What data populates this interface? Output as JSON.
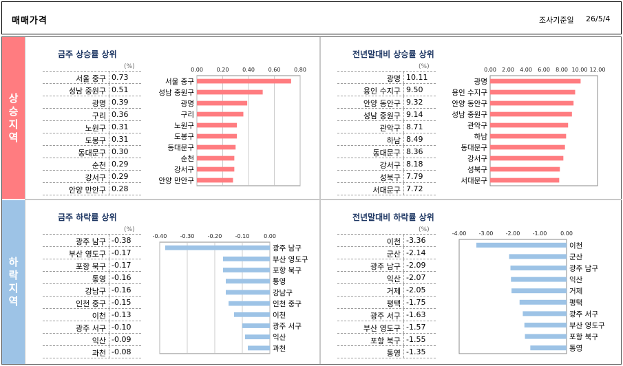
{
  "header": {
    "title": "매매가격",
    "date_label": "조사기준일",
    "date_value": "26/5/4"
  },
  "sections": {
    "rise_label": "상승지역",
    "fall_label": "하락지역"
  },
  "unit": "(%)",
  "colors": {
    "rise_bar": "#ff7c80",
    "fall_bar": "#9dc3e6",
    "rise_side": "#ff7c80",
    "fall_side": "#9dc3e6",
    "title": "#1f3864"
  },
  "panels": [
    {
      "id": "week-rise",
      "title": "금주 상승률 상위",
      "rows": [
        [
          "서울 중구",
          "0.73"
        ],
        [
          "성남 중원구",
          "0.51"
        ],
        [
          "광명",
          "0.39"
        ],
        [
          "구리",
          "0.36"
        ],
        [
          "노원구",
          "0.31"
        ],
        [
          "도봉구",
          "0.31"
        ],
        [
          "동대문구",
          "0.30"
        ],
        [
          "순천",
          "0.29"
        ],
        [
          "강서구",
          "0.29"
        ],
        [
          "안양 만안구",
          "0.28"
        ]
      ]
    },
    {
      "id": "year-rise",
      "title": "전년말대비 상승률 상위",
      "rows": [
        [
          "광명",
          "10.11"
        ],
        [
          "용인 수지구",
          "9.50"
        ],
        [
          "안양 동안구",
          "9.32"
        ],
        [
          "성남 중원구",
          "9.14"
        ],
        [
          "관악구",
          "8.71"
        ],
        [
          "하남",
          "8.49"
        ],
        [
          "동대문구",
          "8.36"
        ],
        [
          "강서구",
          "8.18"
        ],
        [
          "성북구",
          "7.79"
        ],
        [
          "서대문구",
          "7.72"
        ]
      ]
    },
    {
      "id": "week-fall",
      "title": "금주 하락률 상위",
      "rows": [
        [
          "광주 남구",
          "-0.38"
        ],
        [
          "부산 영도구",
          "-0.17"
        ],
        [
          "포항 북구",
          "-0.17"
        ],
        [
          "통영",
          "-0.16"
        ],
        [
          "강남구",
          "-0.16"
        ],
        [
          "인천 중구",
          "-0.15"
        ],
        [
          "이천",
          "-0.13"
        ],
        [
          "광주 서구",
          "-0.10"
        ],
        [
          "익산",
          "-0.09"
        ],
        [
          "과천",
          "-0.08"
        ]
      ]
    },
    {
      "id": "year-fall",
      "title": "전년말대비 하락률 상위",
      "rows": [
        [
          "이천",
          "-3.36"
        ],
        [
          "군산",
          "-2.14"
        ],
        [
          "광주 남구",
          "-2.09"
        ],
        [
          "익산",
          "-2.07"
        ],
        [
          "거제",
          "-2.05"
        ],
        [
          "평택",
          "-1.75"
        ],
        [
          "광주 서구",
          "-1.63"
        ],
        [
          "부산 영도구",
          "-1.57"
        ],
        [
          "포항 북구",
          "-1.55"
        ],
        [
          "통영",
          "-1.35"
        ]
      ]
    }
  ],
  "chart_data": [
    {
      "type": "bar",
      "orientation": "horizontal",
      "title": "금주 상승률 상위",
      "categories": [
        "서울 중구",
        "성남 중원구",
        "광명",
        "구리",
        "노원구",
        "도봉구",
        "동대문구",
        "순천",
        "강서구",
        "안양 만안구"
      ],
      "values": [
        0.73,
        0.51,
        0.39,
        0.36,
        0.31,
        0.31,
        0.3,
        0.29,
        0.29,
        0.28
      ],
      "xlim": [
        0,
        0.8
      ],
      "ticks": [
        "0.00",
        "0.20",
        "0.40",
        "0.60",
        "0.80"
      ],
      "tick_values": [
        0,
        0.2,
        0.4,
        0.6,
        0.8
      ],
      "grid": true
    },
    {
      "type": "bar",
      "orientation": "horizontal",
      "title": "전년말대비 상승률 상위",
      "categories": [
        "광명",
        "용인 수지구",
        "안양 동안구",
        "성남 중원구",
        "관악구",
        "하남",
        "동대문구",
        "강서구",
        "성북구",
        "서대문구"
      ],
      "values": [
        10.11,
        9.5,
        9.32,
        9.14,
        8.71,
        8.49,
        8.36,
        8.18,
        7.79,
        7.72
      ],
      "xlim": [
        0,
        12
      ],
      "ticks": [
        "0.00",
        "2.00",
        "4.00",
        "6.00",
        "8.00",
        "10.00",
        "12.00"
      ],
      "tick_values": [
        0,
        2,
        4,
        6,
        8,
        10,
        12
      ],
      "grid": false
    },
    {
      "type": "bar",
      "orientation": "horizontal",
      "title": "금주 하락률 상위",
      "categories": [
        "광주 남구",
        "부산 영도구",
        "포항 북구",
        "통영",
        "강남구",
        "인천 중구",
        "이천",
        "광주 서구",
        "익산",
        "과천"
      ],
      "values": [
        -0.38,
        -0.17,
        -0.17,
        -0.16,
        -0.16,
        -0.15,
        -0.13,
        -0.1,
        -0.09,
        -0.08
      ],
      "xlim": [
        -0.4,
        0
      ],
      "ticks": [
        "-0.40",
        "-0.30",
        "-0.20",
        "-0.10",
        "0.00"
      ],
      "tick_values": [
        -0.4,
        -0.3,
        -0.2,
        -0.1,
        0
      ],
      "grid": true
    },
    {
      "type": "bar",
      "orientation": "horizontal",
      "title": "전년말대비 하락률 상위",
      "categories": [
        "이천",
        "군산",
        "광주 남구",
        "익산",
        "거제",
        "평택",
        "광주 서구",
        "부산 영도구",
        "포항 북구",
        "통영"
      ],
      "values": [
        -3.36,
        -2.14,
        -2.09,
        -2.07,
        -2.05,
        -1.75,
        -1.63,
        -1.57,
        -1.55,
        -1.35
      ],
      "xlim": [
        -4,
        0
      ],
      "ticks": [
        "-4.00",
        "-3.00",
        "-2.00",
        "-1.00",
        "0.00"
      ],
      "tick_values": [
        -4,
        -3,
        -2,
        -1,
        0
      ],
      "grid": false
    }
  ]
}
